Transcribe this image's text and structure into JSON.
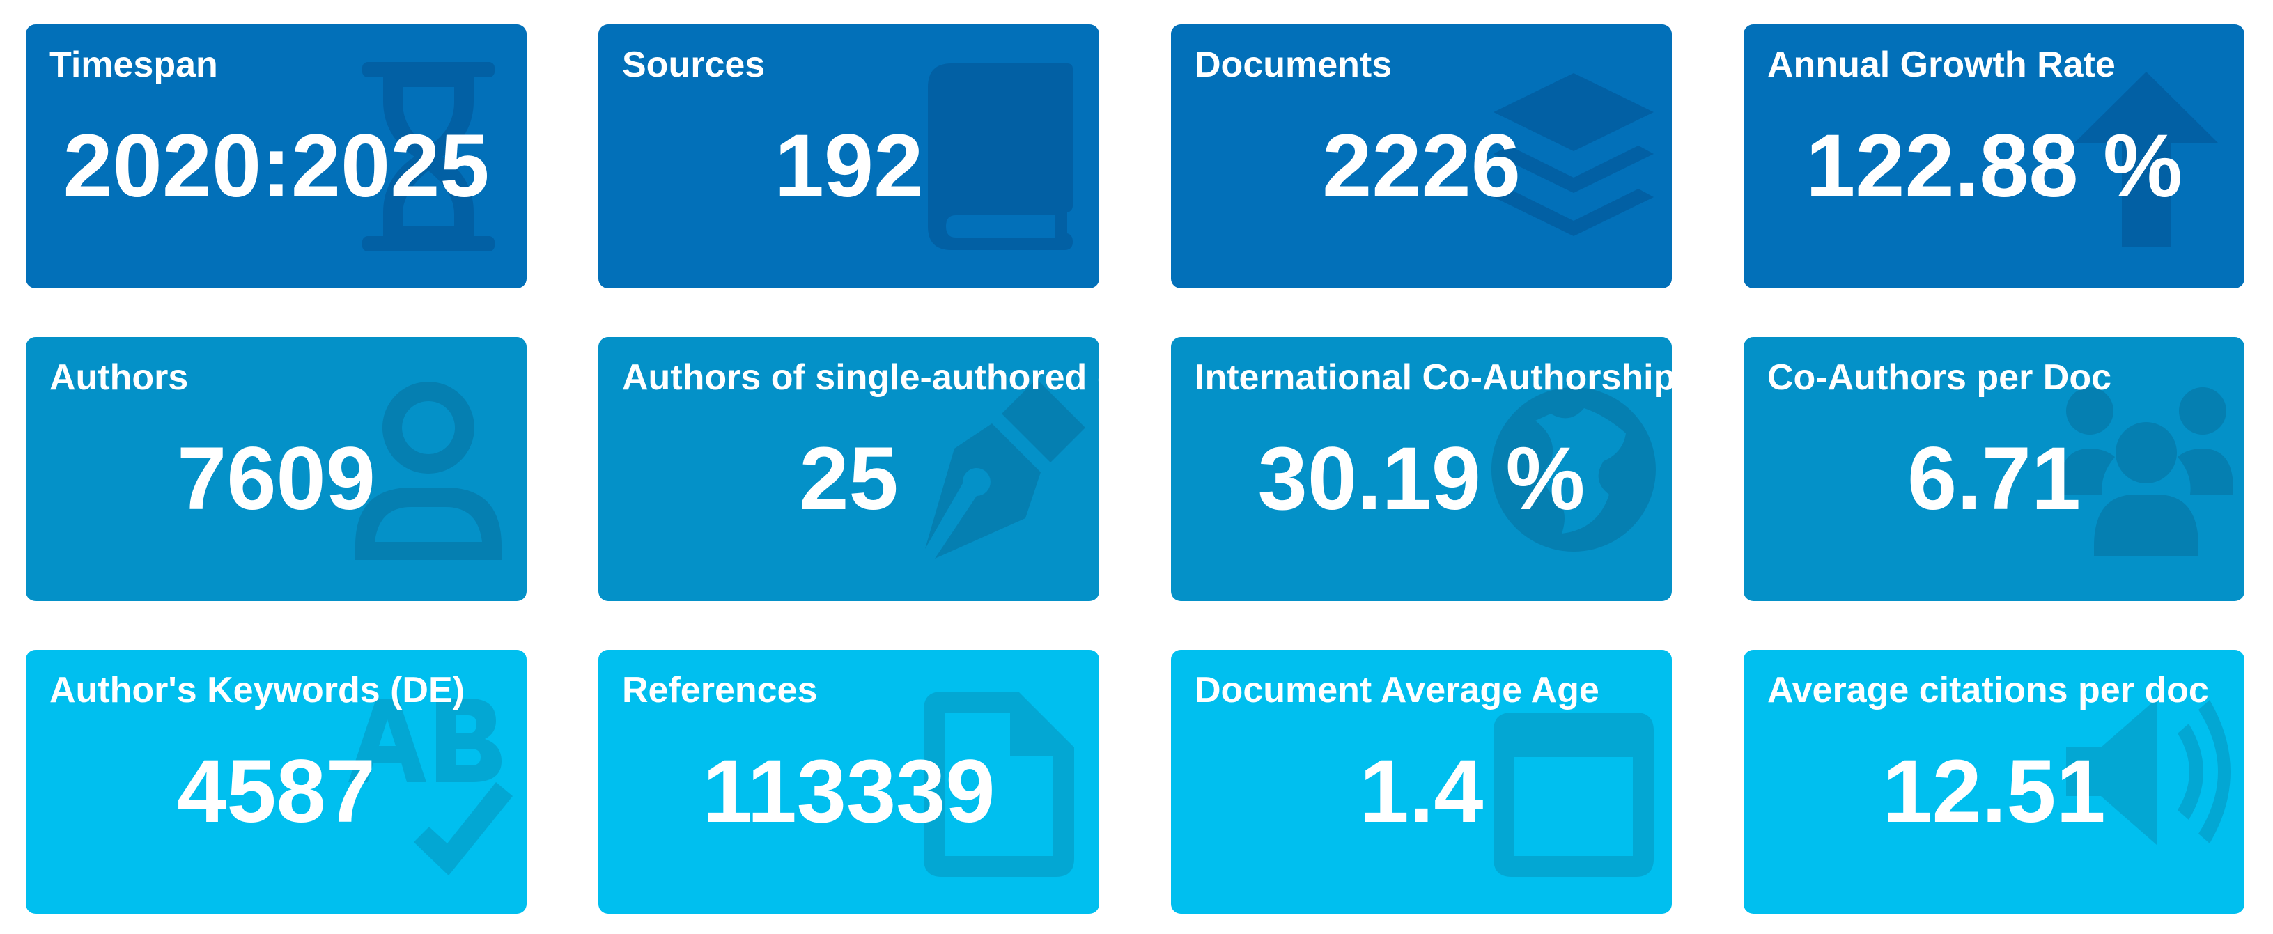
{
  "colors": {
    "row1_background": "#0270b9",
    "row2_background": "#0491c8",
    "row3_background": "#00bfef",
    "text": "#ffffff"
  },
  "cards": [
    {
      "title": "Timespan",
      "value": "2020:2025",
      "icon": "hourglass-icon"
    },
    {
      "title": "Sources",
      "value": "192",
      "icon": "book-icon"
    },
    {
      "title": "Documents",
      "value": "2226",
      "icon": "layers-icon"
    },
    {
      "title": "Annual Growth Rate",
      "value": "122.88 %",
      "icon": "arrow-up-icon"
    },
    {
      "title": "Authors",
      "value": "7609",
      "icon": "user-icon"
    },
    {
      "title": "Authors of single-authored docs",
      "value": "25",
      "icon": "pen-nib-icon"
    },
    {
      "title": "International Co-Authorship",
      "value": "30.19 %",
      "icon": "globe-icon"
    },
    {
      "title": "Co-Authors per Doc",
      "value": "6.71",
      "icon": "users-icon"
    },
    {
      "title": "Author's Keywords (DE)",
      "value": "4587",
      "icon": "spell-check-icon"
    },
    {
      "title": "References",
      "value": "113339",
      "icon": "file-icon"
    },
    {
      "title": "Document Average Age",
      "value": "1.4",
      "icon": "calendar-icon"
    },
    {
      "title": "Average citations per doc",
      "value": "12.51",
      "icon": "volume-icon"
    }
  ]
}
